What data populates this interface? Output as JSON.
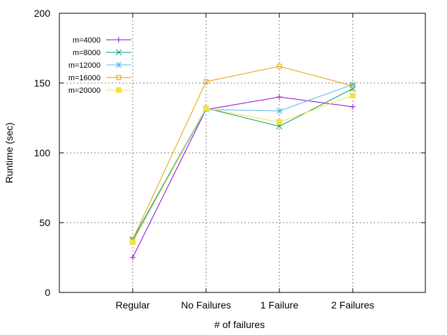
{
  "chart_data": {
    "type": "line",
    "xlabel": "# of failures",
    "ylabel": "Runtime (sec)",
    "categories": [
      "Regular",
      "No Failures",
      "1 Failure",
      "2 Failures"
    ],
    "ylim": [
      0,
      200
    ],
    "yticks": [
      0,
      50,
      100,
      150,
      200
    ],
    "grid": true,
    "legend_position": "top-left",
    "series": [
      {
        "name": "m=4000",
        "color": "#9400d3",
        "marker": "plus",
        "values": [
          25,
          131,
          140,
          133
        ]
      },
      {
        "name": "m=8000",
        "color": "#009e73",
        "marker": "cross",
        "values": [
          38,
          132,
          119,
          146
        ]
      },
      {
        "name": "m=12000",
        "color": "#56b4e9",
        "marker": "star",
        "values": [
          37,
          131,
          130,
          149
        ]
      },
      {
        "name": "m=16000",
        "color": "#e69f00",
        "marker": "open-square",
        "values": [
          38,
          151,
          162,
          148
        ]
      },
      {
        "name": "m=20000",
        "color": "#f0e442",
        "marker": "filled-square",
        "values": [
          36,
          132,
          122,
          141
        ]
      }
    ]
  }
}
